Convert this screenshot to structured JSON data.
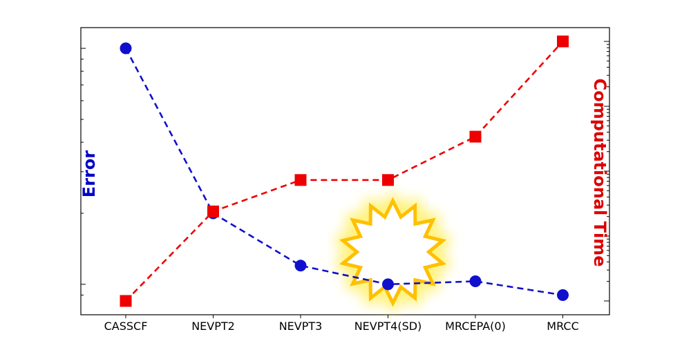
{
  "chart_data": {
    "type": "line",
    "title": "",
    "categories": [
      "CASSCF",
      "NEVPT2",
      "NEVPT3",
      "NEVPT4(SD)",
      "MRCEPA(0)",
      "MRCC"
    ],
    "xlabel": "",
    "y_left_label": "Error",
    "y_right_label": "Computational Time",
    "y_left_color": "#0000cc",
    "y_right_color": "#dd0000",
    "y_left_scale": "log",
    "y_right_scale": "log",
    "y_left_tick_labels_shown": false,
    "y_right_tick_labels_shown": false,
    "grid": false,
    "legend": "none",
    "highlight": {
      "category": "NEVPT4(SD)",
      "shape": "starburst",
      "color": "#ffc000"
    },
    "series": [
      {
        "axis": "left",
        "color": "#1010cc",
        "marker": "circle",
        "line_style": "dashed",
        "relative_values": [
          1.0,
          0.2,
          0.12,
          0.1,
          0.103,
          0.09
        ]
      },
      {
        "axis": "right",
        "color": "#ee0000",
        "marker": "square",
        "line_style": "dashed",
        "relative_values": [
          0.0001,
          0.0024,
          0.0073,
          0.0073,
          0.034,
          1.0
        ]
      }
    ]
  }
}
